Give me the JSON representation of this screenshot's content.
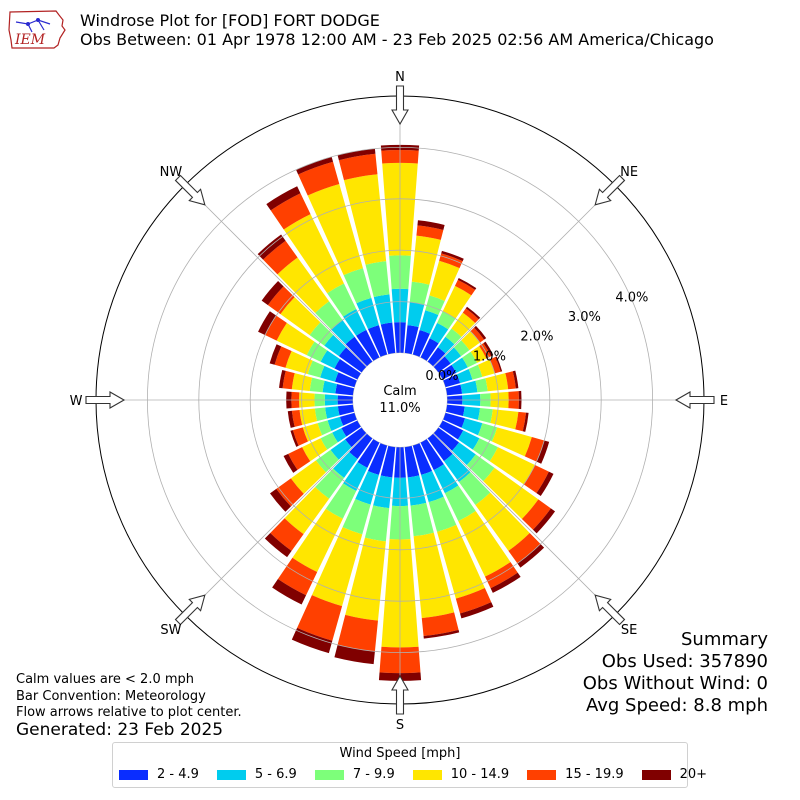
{
  "header": {
    "logo_text": "IEM",
    "title_line1": "Windrose Plot for [FOD] FORT DODGE",
    "title_line2": "Obs Between: 01 Apr 1978 12:00 AM - 23 Feb 2025 02:56 AM America/Chicago"
  },
  "footer": {
    "notes": [
      "Calm values are < 2.0 mph",
      "Bar Convention: Meteorology",
      "Flow arrows relative to plot center."
    ],
    "generated": "Generated: 23 Feb 2025"
  },
  "summary": {
    "heading": "Summary",
    "obs_used": "Obs Used: 357890",
    "obs_without_wind": "Obs Without Wind: 0",
    "avg_speed": "Avg Speed: 8.8 mph"
  },
  "colors": [
    "#0a2dff",
    "#00ccee",
    "#7dff7a",
    "#ffe600",
    "#ff4000",
    "#800000"
  ],
  "chart_data": {
    "type": "windrose",
    "calm_label": "Calm",
    "calm_value": "11.0%",
    "direction_labels": [
      "N",
      "NE",
      "E",
      "SE",
      "S",
      "SW",
      "W",
      "NW"
    ],
    "radial_ticks": [
      "0.0%",
      "1.0%",
      "2.0%",
      "3.0%",
      "4.0%"
    ],
    "radial_values": [
      0,
      1,
      2,
      3,
      4
    ],
    "rmax": 5.0,
    "legend_title": "Wind Speed [mph]",
    "bins": [
      "2 - 4.9",
      "5 - 6.9",
      "7 - 9.9",
      "10 - 14.9",
      "15 - 19.9",
      "20+"
    ],
    "directions_deg": [
      0,
      10,
      20,
      30,
      40,
      50,
      60,
      70,
      80,
      90,
      100,
      110,
      120,
      130,
      140,
      150,
      160,
      170,
      180,
      190,
      200,
      210,
      220,
      230,
      240,
      250,
      260,
      270,
      280,
      290,
      300,
      310,
      320,
      330,
      340,
      350
    ],
    "cumulative_percent": [
      [
        0.6,
        1.25,
        1.9,
        3.7,
        3.95,
        4.05
      ],
      [
        0.55,
        1.0,
        1.4,
        2.3,
        2.5,
        2.6
      ],
      [
        0.5,
        0.9,
        1.2,
        1.9,
        2.05,
        2.1
      ],
      [
        0.42,
        0.75,
        1.0,
        1.55,
        1.68,
        1.72
      ],
      [
        0.35,
        0.6,
        0.8,
        1.18,
        1.28,
        1.32
      ],
      [
        0.3,
        0.55,
        0.75,
        1.0,
        1.1,
        1.15
      ],
      [
        0.3,
        0.55,
        0.75,
        0.95,
        1.05,
        1.1
      ],
      [
        0.3,
        0.55,
        0.75,
        1.0,
        1.12,
        1.15
      ],
      [
        0.3,
        0.6,
        0.8,
        1.2,
        1.35,
        1.4
      ],
      [
        0.3,
        0.65,
        0.85,
        1.2,
        1.4,
        1.45
      ],
      [
        0.35,
        0.65,
        0.9,
        1.4,
        1.55,
        1.6
      ],
      [
        0.4,
        0.75,
        1.05,
        1.75,
        2.0,
        2.1
      ],
      [
        0.45,
        0.8,
        1.2,
        2.0,
        2.3,
        2.4
      ],
      [
        0.5,
        0.9,
        1.35,
        2.4,
        2.7,
        2.8
      ],
      [
        0.55,
        1.05,
        1.6,
        2.7,
        3.0,
        3.1
      ],
      [
        0.6,
        1.1,
        1.7,
        2.9,
        3.15,
        3.25
      ],
      [
        0.6,
        1.15,
        1.75,
        3.1,
        3.4,
        3.5
      ],
      [
        0.6,
        1.15,
        1.75,
        3.35,
        3.7,
        3.75
      ],
      [
        0.6,
        1.15,
        1.8,
        3.9,
        4.4,
        4.55
      ],
      [
        0.6,
        1.2,
        1.85,
        3.4,
        4.0,
        4.25
      ],
      [
        0.6,
        1.2,
        1.8,
        3.25,
        3.95,
        4.2
      ],
      [
        0.55,
        1.05,
        1.65,
        2.8,
        3.3,
        3.5
      ],
      [
        0.5,
        0.95,
        1.45,
        2.3,
        2.7,
        2.85
      ],
      [
        0.4,
        0.75,
        1.1,
        1.7,
        2.05,
        2.2
      ],
      [
        0.35,
        0.55,
        0.8,
        1.2,
        1.5,
        1.6
      ],
      [
        0.3,
        0.55,
        0.75,
        1.05,
        1.25,
        1.3
      ],
      [
        0.3,
        0.55,
        0.75,
        1.05,
        1.2,
        1.28
      ],
      [
        0.3,
        0.55,
        0.75,
        1.05,
        1.2,
        1.3
      ],
      [
        0.35,
        0.6,
        0.85,
        1.2,
        1.38,
        1.45
      ],
      [
        0.4,
        0.7,
        0.95,
        1.4,
        1.62,
        1.72
      ],
      [
        0.5,
        0.8,
        1.1,
        1.75,
        2.0,
        2.15
      ],
      [
        0.55,
        0.9,
        1.25,
        1.95,
        2.25,
        2.4
      ],
      [
        0.6,
        1.0,
        1.45,
        2.5,
        2.9,
        3.05
      ],
      [
        0.6,
        1.05,
        1.6,
        3.1,
        3.55,
        3.7
      ],
      [
        0.6,
        1.15,
        1.75,
        3.45,
        3.9,
        4.0
      ],
      [
        0.6,
        1.15,
        1.8,
        3.5,
        3.9,
        4.0
      ]
    ]
  }
}
